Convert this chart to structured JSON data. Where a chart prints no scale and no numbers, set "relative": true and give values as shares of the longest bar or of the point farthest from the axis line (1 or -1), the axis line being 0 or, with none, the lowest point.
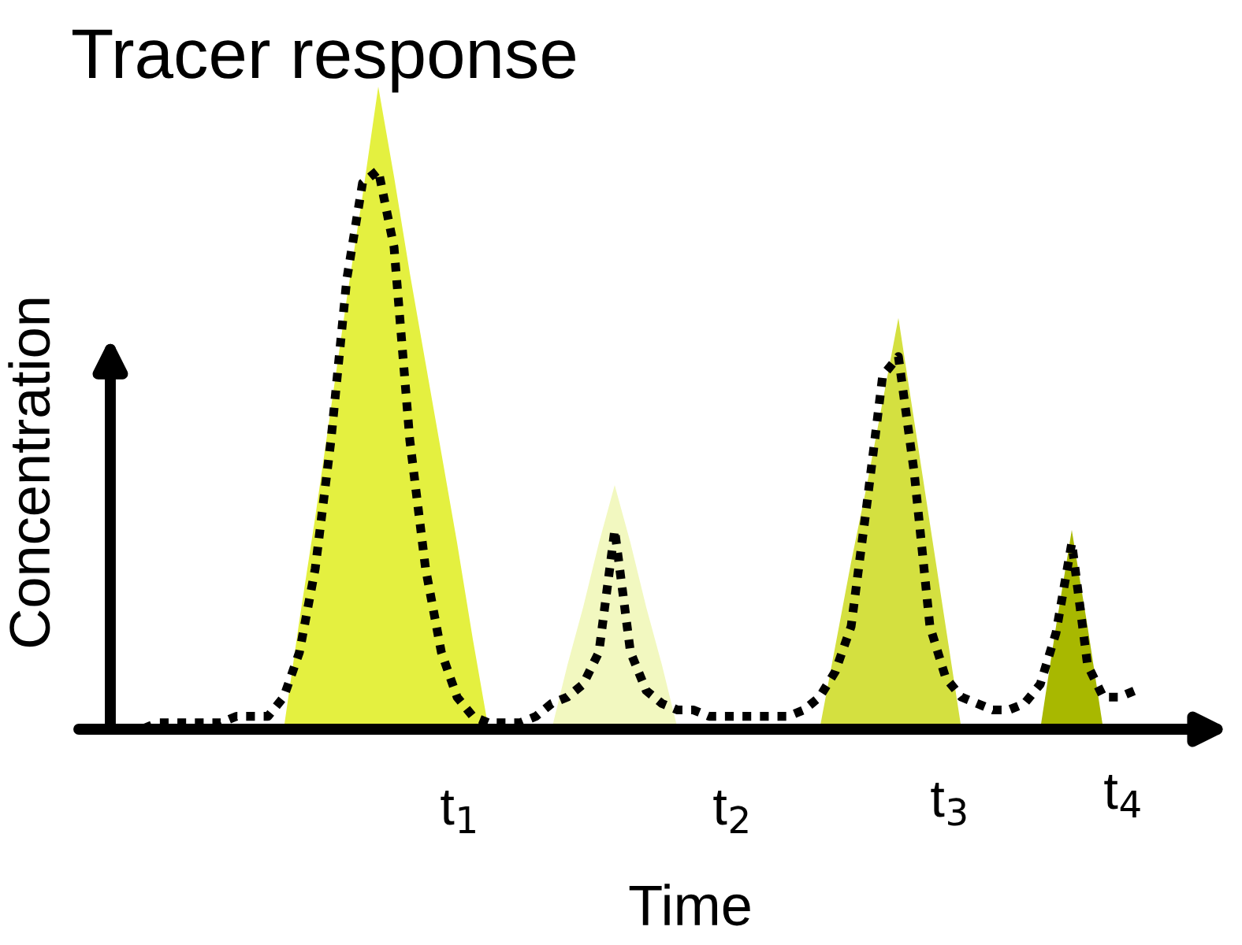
{
  "chart_data": {
    "type": "line",
    "title": "Tracer response",
    "xlabel": "Time",
    "ylabel": "Concentration",
    "annotations": [
      "t$_{1}$",
      "t$_{2}$",
      "t$_{3}$",
      "t$_{4}$"
    ],
    "categories": [
      null,
      null,
      null,
      null,
      null,
      null,
      null,
      null,
      null,
      null,
      null,
      null,
      null,
      null,
      null,
      null,
      null,
      null,
      null,
      null,
      null,
      null,
      null,
      null,
      null,
      null,
      null,
      null,
      null,
      null,
      null,
      null,
      null,
      null,
      null,
      null,
      null,
      null,
      null,
      null,
      null,
      null,
      null,
      null,
      null,
      null,
      null,
      null,
      null,
      null,
      null,
      null,
      null,
      null,
      null,
      null,
      null,
      null,
      null,
      null,
      null,
      null,
      null,
      null,
      null,
      null,
      null,
      null,
      null,
      null,
      null,
      null,
      null
    ],
    "relative": true,
    "legend": false,
    "line_style": "dotted",
    "marker": "none",
    "series": [
      {
        "type": "area",
        "color": "#e4f040",
        "values": [
          null,
          null,
          null,
          null,
          null,
          null,
          null,
          null,
          null,
          null,
          null,
          null,
          0,
          0.17,
          0.33,
          0.5,
          0.67,
          0.83,
          1.0,
          0.86,
          0.71,
          0.57,
          0.43,
          0.29,
          0.14,
          0,
          null,
          null,
          null,
          null,
          null,
          null,
          null,
          null,
          null,
          null,
          null,
          null,
          null,
          null,
          null,
          null,
          null,
          null,
          null,
          null,
          null,
          null,
          null,
          null,
          null,
          null,
          null,
          null,
          null,
          null,
          null,
          null,
          null,
          null,
          null,
          null,
          null,
          null,
          null,
          null,
          null,
          null,
          null,
          null,
          null,
          null,
          null
        ]
      },
      {
        "type": "area",
        "color": "#f2f8c0",
        "values": [
          null,
          null,
          null,
          null,
          null,
          null,
          null,
          null,
          null,
          null,
          null,
          null,
          null,
          null,
          null,
          null,
          null,
          null,
          null,
          null,
          null,
          null,
          null,
          null,
          null,
          null,
          null,
          null,
          null,
          0,
          0.1,
          0.19,
          0.29,
          0.38,
          0.29,
          0.19,
          0.1,
          0,
          null,
          null,
          null,
          null,
          null,
          null,
          null,
          null,
          null,
          null,
          null,
          null,
          null,
          null,
          null,
          null,
          null,
          null,
          null,
          null,
          null,
          null,
          null,
          null,
          null,
          null,
          null,
          null,
          null,
          null,
          null,
          null,
          null,
          null,
          null
        ]
      },
      {
        "type": "area",
        "color": "#d4e040",
        "values": [
          null,
          null,
          null,
          null,
          null,
          null,
          null,
          null,
          null,
          null,
          null,
          null,
          null,
          null,
          null,
          null,
          null,
          null,
          null,
          null,
          null,
          null,
          null,
          null,
          null,
          null,
          null,
          null,
          null,
          null,
          null,
          null,
          null,
          null,
          null,
          null,
          null,
          null,
          null,
          null,
          null,
          null,
          null,
          null,
          null,
          null,
          0,
          0.13,
          0.26,
          0.38,
          0.51,
          0.64,
          0.48,
          0.32,
          0.16,
          0,
          null,
          null,
          null,
          null,
          null,
          null,
          null,
          null,
          null,
          null,
          null,
          null,
          null,
          null,
          null,
          null,
          null
        ]
      },
      {
        "type": "area",
        "color": "#a8b800",
        "values": [
          null,
          null,
          null,
          null,
          null,
          null,
          null,
          null,
          null,
          null,
          null,
          null,
          null,
          null,
          null,
          null,
          null,
          null,
          null,
          null,
          null,
          null,
          null,
          null,
          null,
          null,
          null,
          null,
          null,
          null,
          null,
          null,
          null,
          null,
          null,
          null,
          null,
          null,
          null,
          null,
          null,
          null,
          null,
          null,
          null,
          null,
          null,
          null,
          null,
          null,
          null,
          null,
          null,
          null,
          null,
          null,
          null,
          null,
          null,
          null,
          0,
          0.16,
          0.31,
          0.16,
          0,
          null,
          null,
          null,
          null,
          null,
          null,
          null,
          null
        ]
      },
      {
        "color": "#000000",
        "values": [
          null,
          null,
          0,
          0.0,
          0.01,
          0.01,
          0.01,
          0.01,
          0.01,
          0.02,
          0.02,
          0.02,
          0.05,
          0.12,
          0.25,
          0.45,
          0.7,
          0.85,
          0.87,
          0.75,
          0.45,
          0.25,
          0.12,
          0.05,
          0.02,
          0.01,
          0.01,
          0.01,
          0.02,
          0.04,
          0.05,
          0.07,
          0.12,
          0.31,
          0.12,
          0.06,
          0.04,
          0.03,
          0.03,
          0.02,
          0.02,
          0.02,
          0.02,
          0.02,
          0.02,
          0.03,
          0.05,
          0.09,
          0.16,
          0.35,
          0.55,
          0.58,
          0.4,
          0.16,
          0.08,
          0.05,
          0.04,
          0.03,
          0.03,
          0.04,
          0.07,
          0.15,
          0.29,
          0.1,
          0.05,
          0.05,
          0.06,
          null,
          null,
          null,
          null,
          null,
          null
        ]
      }
    ]
  }
}
